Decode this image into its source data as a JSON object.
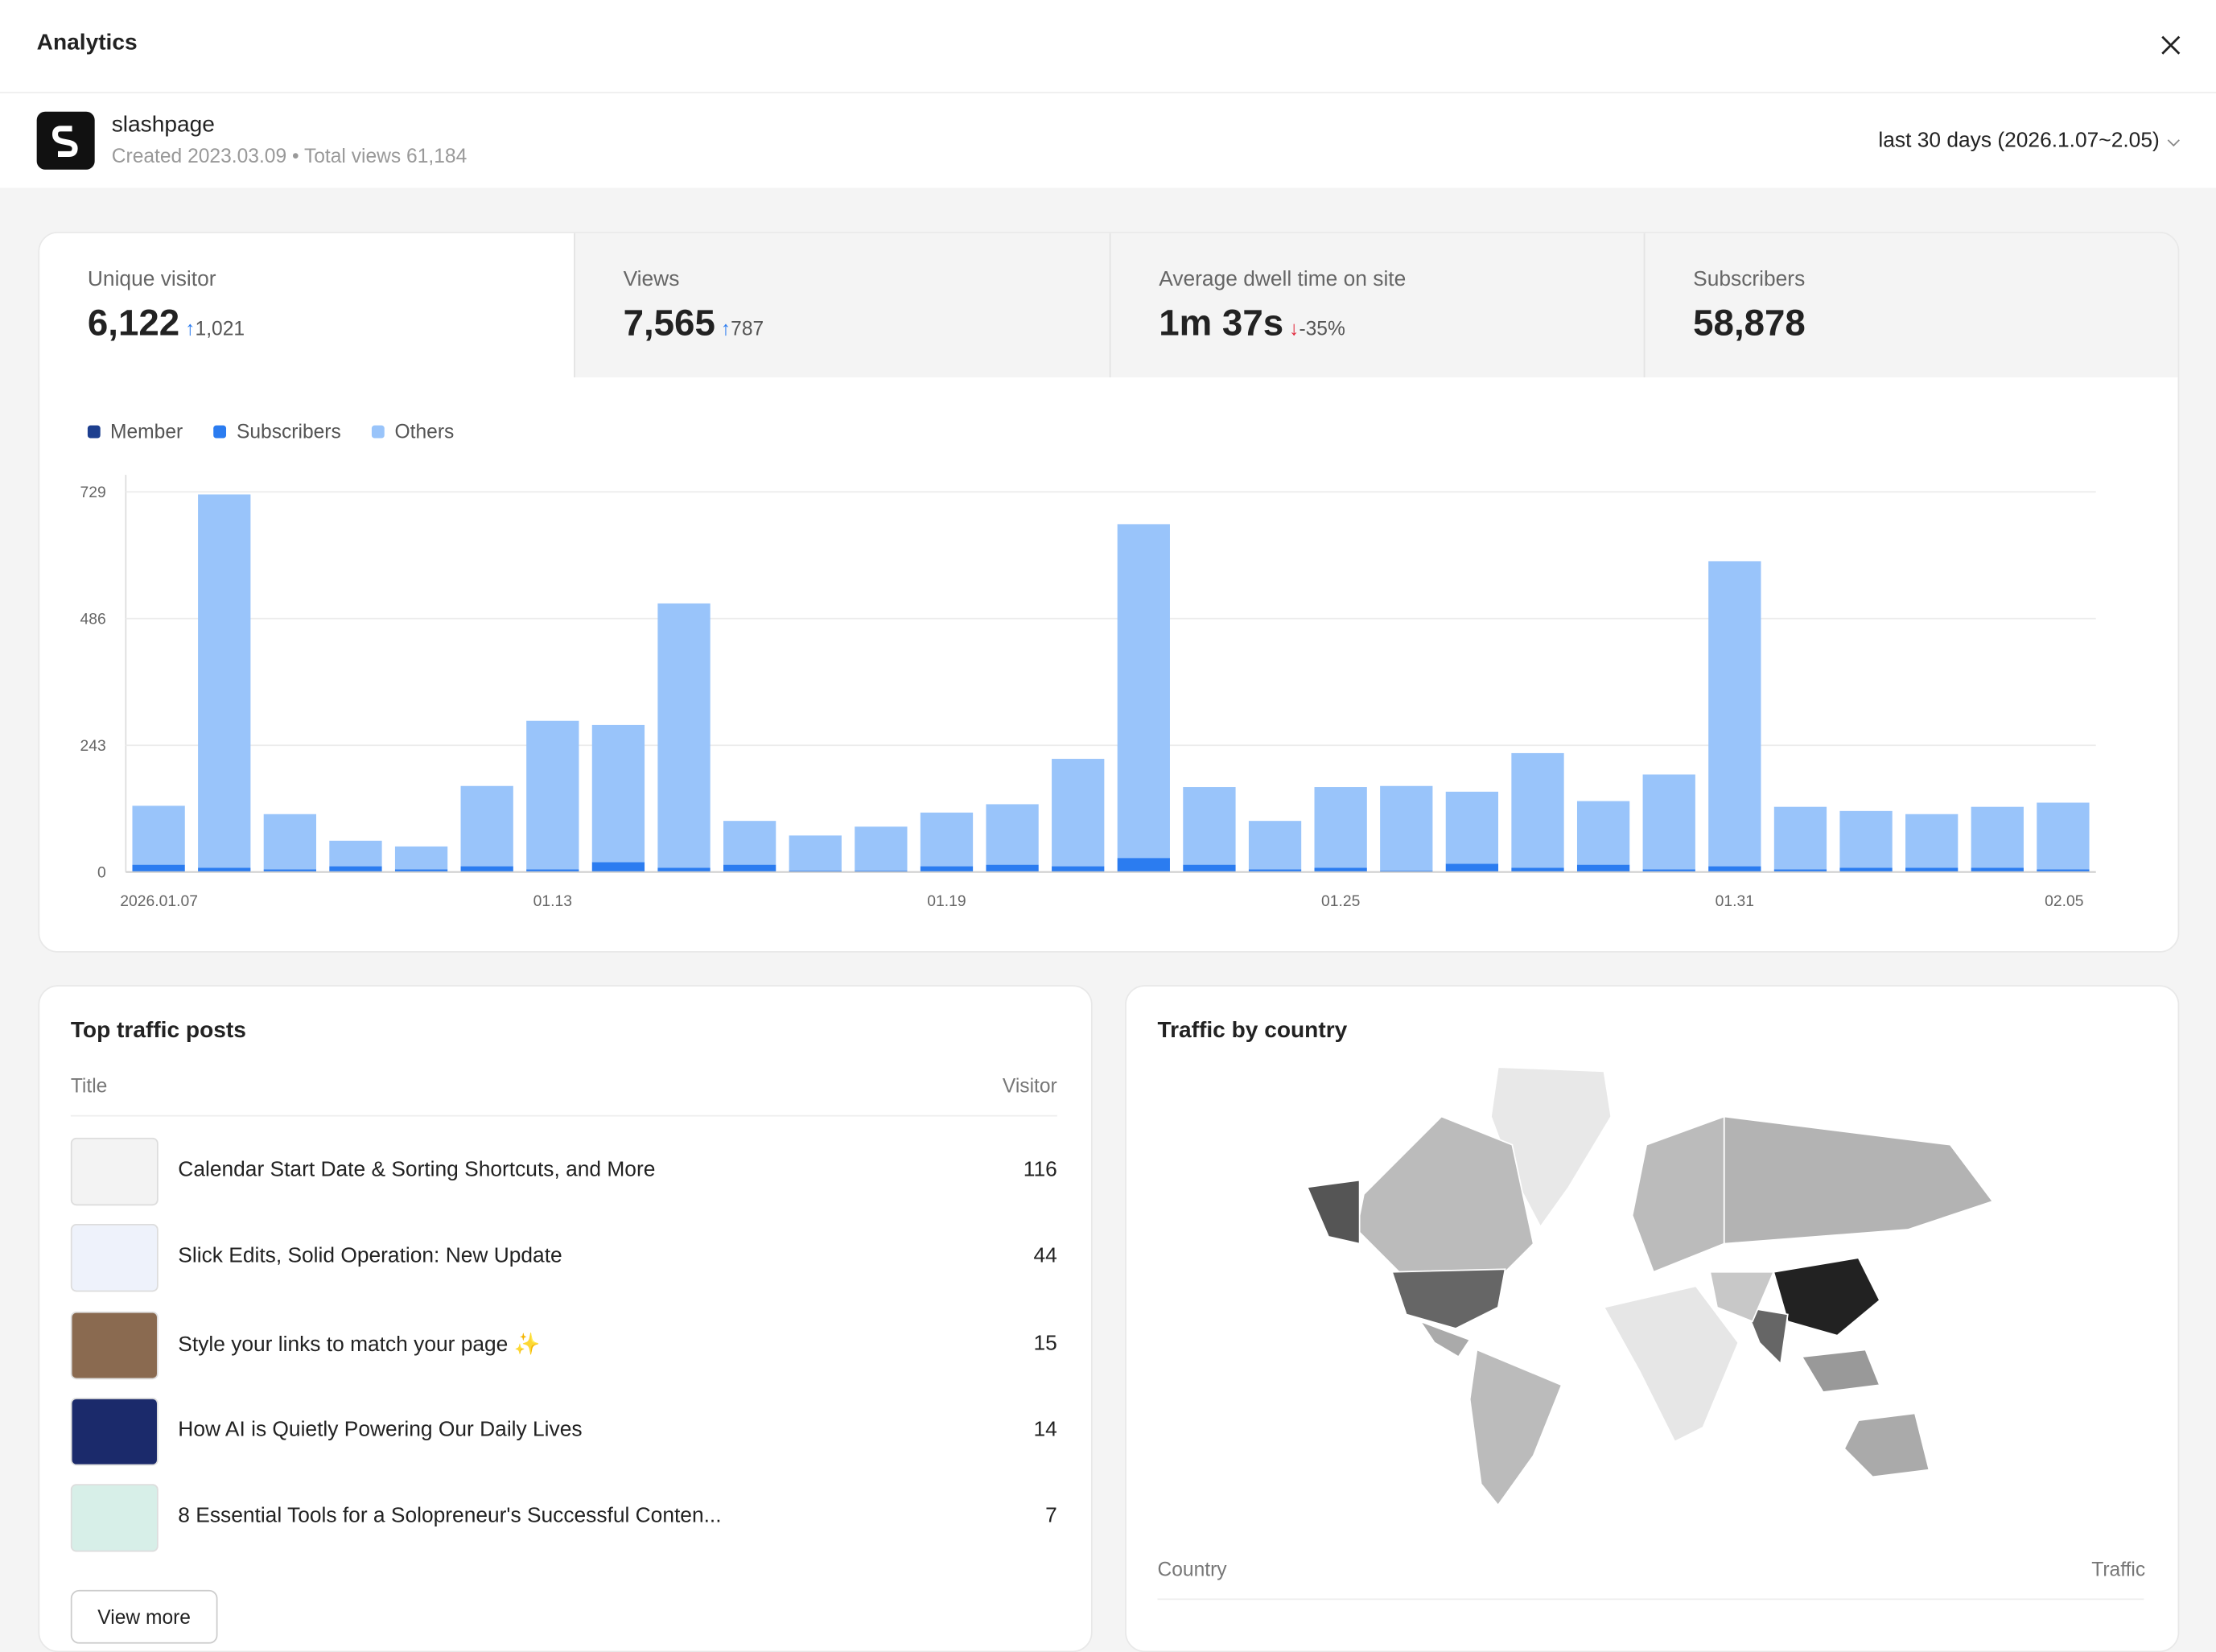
{
  "header": {
    "title": "Analytics"
  },
  "site": {
    "name": "slashpage",
    "meta": "Created 2023.03.09 • Total views 61,184",
    "range": "last 30 days (2026.1.07~2.05)"
  },
  "stats": [
    {
      "label": "Unique visitor",
      "value": "6,122",
      "change": "1,021"
    },
    {
      "label": "Views",
      "value": "7,565",
      "change": "787"
    },
    {
      "label": "Average dwell time on site",
      "value": "1m 37s",
      "change": "-35%"
    },
    {
      "label": "Subscribers",
      "value": "58,878"
    }
  ],
  "chart_data": {
    "type": "bar",
    "stacked": true,
    "categories": [
      "2026.01.07",
      null,
      null,
      null,
      null,
      null,
      "01.13",
      null,
      null,
      null,
      null,
      null,
      "01.19",
      null,
      null,
      null,
      null,
      null,
      "01.25",
      null,
      null,
      null,
      null,
      null,
      "01.31",
      null,
      null,
      null,
      null,
      "02.05"
    ],
    "series": [
      {
        "name": "Member",
        "color": "#1d3f8f",
        "values": [
          0,
          0,
          0,
          0,
          0,
          0,
          0,
          0,
          0,
          0,
          0,
          0,
          0,
          0,
          0,
          0,
          0,
          0,
          0,
          0,
          0,
          0,
          0,
          0,
          0,
          0,
          0,
          0,
          0,
          0
        ]
      },
      {
        "name": "Subscribers",
        "color": "#2b7cf0",
        "values": [
          14,
          8,
          5,
          11,
          5,
          11,
          5,
          19,
          8,
          14,
          3,
          3,
          11,
          14,
          11,
          27,
          14,
          5,
          8,
          3,
          16,
          8,
          14,
          5,
          11,
          5,
          8,
          8,
          8,
          5
        ]
      },
      {
        "name": "Others",
        "color": "#99c4fa",
        "values": [
          113,
          716,
          106,
          49,
          44,
          154,
          285,
          263,
          507,
          84,
          67,
          84,
          103,
          116,
          206,
          640,
          149,
          93,
          155,
          162,
          138,
          220,
          122,
          182,
          585,
          120,
          109,
          103,
          117,
          128
        ]
      }
    ],
    "ylim": [
      0,
      729
    ],
    "yticks": [
      0,
      243,
      486,
      729
    ],
    "grid": true
  },
  "posts": {
    "title": "Top traffic posts",
    "columns": [
      "Title",
      "Visitor"
    ],
    "rows": [
      [
        "Calendar Start Date & Sorting Shortcuts, and More",
        116
      ],
      [
        "Slick Edits, Solid Operation: New Update",
        44
      ],
      [
        "Style your links to match your page ✨",
        15
      ],
      [
        "How AI is Quietly Powering Our Daily Lives",
        14
      ],
      [
        "8 Essential Tools for a Solopreneur's Successful Conten...",
        7
      ]
    ],
    "button": "View more"
  },
  "country": {
    "title": "Traffic by country",
    "columns": [
      "Country",
      "Traffic"
    ]
  }
}
